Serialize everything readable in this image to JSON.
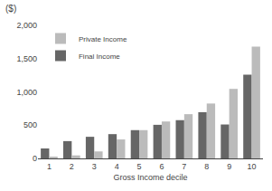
{
  "chart_data": {
    "type": "bar",
    "title": "($)",
    "xlabel": "Gross Income decile",
    "categories": [
      "1",
      "2",
      "3",
      "4",
      "5",
      "6",
      "7",
      "8",
      "9",
      "10"
    ],
    "series": [
      {
        "name": "Final Income",
        "color": "#666666",
        "values": [
          150,
          260,
          325,
          365,
          425,
          505,
          575,
          695,
          510,
          1260
        ]
      },
      {
        "name": "Private Income",
        "color": "#bbbbbb",
        "values": [
          25,
          45,
          105,
          285,
          425,
          555,
          665,
          825,
          1045,
          1680
        ]
      }
    ],
    "ylim": [
      0,
      2000
    ],
    "yticks": [
      0,
      500,
      {
        "value": 1000,
        "label": "1,000"
      },
      {
        "value": 1500,
        "label": "1,500"
      },
      {
        "value": 2000,
        "label": "2,000"
      }
    ],
    "grid": false,
    "legend": "upper left"
  }
}
